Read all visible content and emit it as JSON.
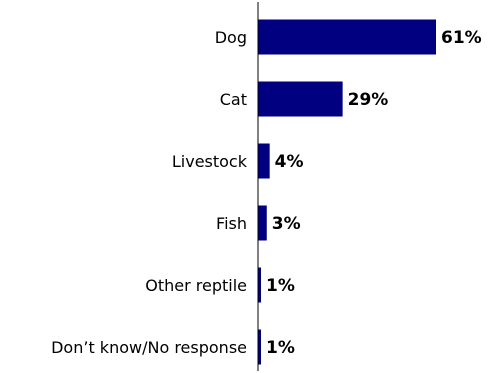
{
  "chart_data": {
    "type": "bar",
    "orientation": "horizontal",
    "categories": [
      "Dog",
      "Cat",
      "Livestock",
      "Fish",
      "Other reptile",
      "Don’t know/No response"
    ],
    "values": [
      61,
      29,
      4,
      3,
      1,
      1
    ],
    "value_labels": [
      "61%",
      "29%",
      "4%",
      "3%",
      "1%",
      "1%"
    ],
    "title": "",
    "xlabel": "",
    "ylabel": "",
    "xlim": [
      0,
      61
    ],
    "grid": false,
    "legend": "none",
    "colors": {
      "bar": "#000080",
      "axis": "#000000"
    }
  }
}
